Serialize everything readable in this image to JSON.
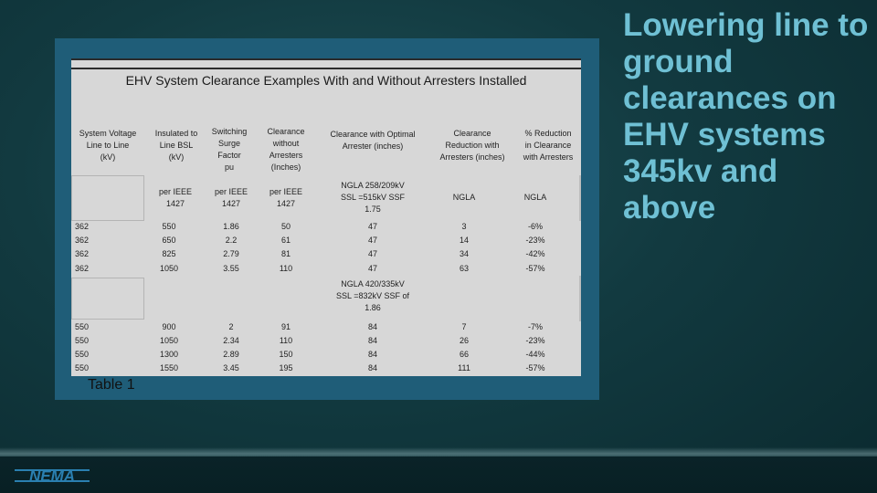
{
  "slide": {
    "heading": "Lowering line to ground clearances on EHV systems 345kv and above",
    "caption": "Table 1",
    "logo_text": "NEMA"
  },
  "table": {
    "title": "EHV System Clearance Examples With and Without Arresters Installed",
    "headers": [
      "System Voltage\nLine to Line\n(kV)",
      "Insulated to\nLine BSL\n(kV)",
      "Switching\nSurge\nFactor\npu",
      "Clearance\nwithout\nArresters\n(Inches)",
      "Clearance with Optimal\nArrester (inches)",
      "Clearance\nReduction with\nArresters (inches)",
      "% Reduction\nin Clearance\nwith Arresters"
    ],
    "subheader1": [
      "",
      "per IEEE\n1427",
      "per IEEE\n1427",
      "per IEEE\n1427",
      "NGLA 258/209kV\nSSL =515kV SSF\n1.75",
      "NGLA",
      "NGLA"
    ],
    "group1_rows": [
      [
        "362",
        "550",
        "1.86",
        "50",
        "47",
        "3",
        "-6%"
      ],
      [
        "362",
        "650",
        "2.2",
        "61",
        "47",
        "14",
        "-23%"
      ],
      [
        "362",
        "825",
        "2.79",
        "81",
        "47",
        "34",
        "-42%"
      ],
      [
        "362",
        "1050",
        "3.55",
        "110",
        "47",
        "63",
        "-57%"
      ]
    ],
    "subheader2": "NGLA 420/335kV\nSSL =832kV SSF of\n1.86",
    "group2_rows": [
      [
        "550",
        "900",
        "2",
        "91",
        "84",
        "7",
        "-7%"
      ],
      [
        "550",
        "1050",
        "2.34",
        "110",
        "84",
        "26",
        "-23%"
      ],
      [
        "550",
        "1300",
        "2.89",
        "150",
        "84",
        "66",
        "-44%"
      ],
      [
        "550",
        "1550",
        "3.45",
        "195",
        "84",
        "111",
        "-57%"
      ]
    ]
  },
  "colors": {
    "heading": "#6fc0d4",
    "panel": "#1f5d78",
    "sheet": "#d7d7d7",
    "logo": "#2a7fb0"
  }
}
